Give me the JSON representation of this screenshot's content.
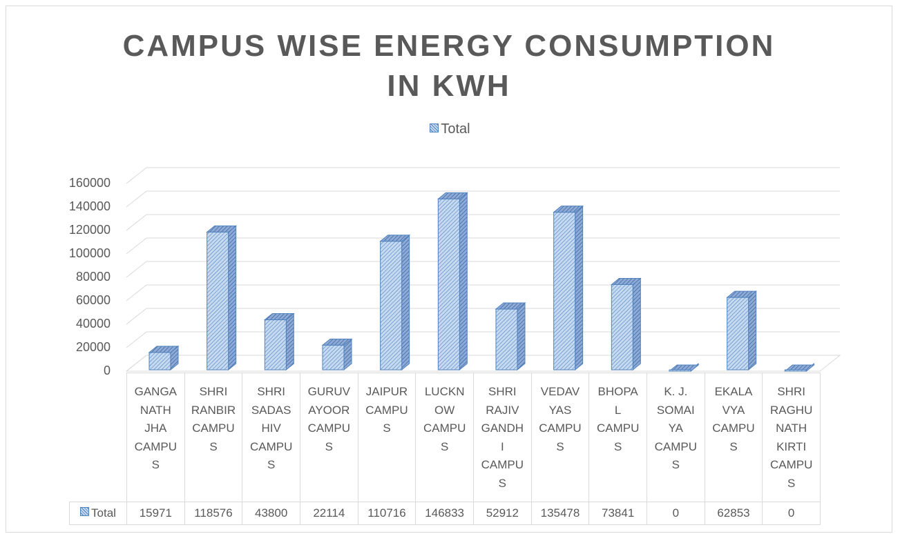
{
  "chart_data": {
    "type": "bar",
    "title": "CAMPUS WISE ENERGY CONSUMPTION IN KWH",
    "categories": [
      "GANGANATH JHA CAMPUS",
      "SHRI RANBIR CAMPUS",
      "SHRI SADASHIV CAMPUS",
      "GURUVAYOOR CAMPUS",
      "JAIPUR CAMPUS",
      "LUCKNOW CAMPUS",
      "SHRI RAJIV GANDHI CAMPUS",
      "VEDAVYAS CAMPUS",
      "BHOPAL CAMPUS",
      "K. J. SOMAIYA CAMPUS",
      "EKALAVYA CAMPUS",
      "SHRI RAGHUNATH KIRTI CAMPUS"
    ],
    "series": [
      {
        "name": "Total",
        "color": "#4f81bd",
        "values": [
          15971,
          118576,
          43800,
          22114,
          110716,
          146833,
          52912,
          135478,
          73841,
          0,
          62853,
          0
        ]
      }
    ],
    "ylim": [
      0,
      160000
    ],
    "yticks": [
      0,
      20000,
      40000,
      60000,
      80000,
      100000,
      120000,
      140000,
      160000
    ],
    "grid": true,
    "legend": "top"
  }
}
